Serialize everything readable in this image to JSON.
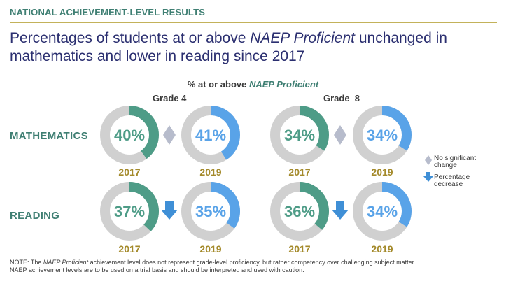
{
  "header": "NATIONAL ACHIEVEMENT-LEVEL RESULTS",
  "headline": {
    "pre": "Percentages of students at or above ",
    "em": "NAEP Proficient",
    "post": " unchanged in mathematics and lower in reading since 2017"
  },
  "subtitle": {
    "pre": "% at or above ",
    "em": "NAEP Proficient"
  },
  "legend": {
    "no_change": "No significant change",
    "decrease": "Percentage decrease"
  },
  "note": {
    "pre": "NOTE: The ",
    "em": "NAEP Proficient",
    "post": " achievement level does not represent grade-level proficiency, but rather competency over challenging subject matter.",
    "line2": "NAEP achievement levels are to be used on a trial basis and should be interpreted and used with caution."
  },
  "colors": {
    "green": "#4e9c87",
    "blue": "#59a3e8",
    "gray": "#d0d0d0",
    "diamond": "#b7bccc",
    "arrow": "#3f8fd6"
  },
  "chart_data": {
    "type": "donut",
    "groups": [
      "Grade 4",
      "Grade  8"
    ],
    "subjects": [
      "MATHEMATICS",
      "READING"
    ],
    "years": [
      "2017",
      "2019"
    ],
    "values": {
      "MATHEMATICS": {
        "Grade 4": [
          40,
          41
        ],
        "Grade  8": [
          34,
          34
        ]
      },
      "READING": {
        "Grade 4": [
          37,
          35
        ],
        "Grade  8": [
          36,
          34
        ]
      }
    },
    "labels": {
      "MATHEMATICS": {
        "Grade 4": [
          "40%",
          "41%"
        ],
        "Grade  8": [
          "34%",
          "34%"
        ]
      },
      "READING": {
        "Grade 4": [
          "37%",
          "35%"
        ],
        "Grade  8": [
          "36%",
          "34%"
        ]
      }
    },
    "change": {
      "MATHEMATICS": {
        "Grade 4": "no_change",
        "Grade  8": "no_change"
      },
      "READING": {
        "Grade 4": "decrease",
        "Grade  8": "decrease"
      }
    }
  }
}
